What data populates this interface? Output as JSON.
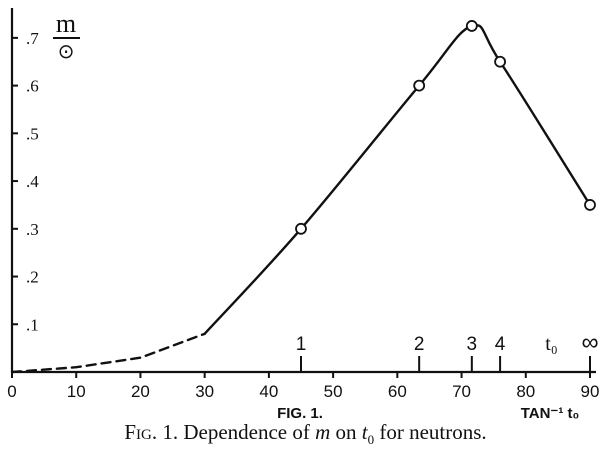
{
  "chart_data": {
    "type": "line",
    "ylabel_top": "m",
    "ylabel_bottom": "⊙",
    "xlim": [
      0,
      90
    ],
    "ylim": [
      0,
      0.75
    ],
    "x_ticks": [
      "0",
      "10",
      "20",
      "30",
      "40",
      "50",
      "60",
      "70",
      "80",
      "90"
    ],
    "y_ticks": [
      ".1",
      ".2",
      ".3",
      ".4",
      ".5",
      ".6",
      ".7"
    ],
    "top_ticks": [
      {
        "x": 45,
        "label": "1"
      },
      {
        "x": 63.4,
        "label": "2"
      },
      {
        "x": 71.6,
        "label": "3"
      },
      {
        "x": 76,
        "label": "4"
      },
      {
        "x": 90,
        "label": "∞"
      }
    ],
    "t0_marker": "t₀",
    "figure_label": "FIG. 1.",
    "axis_label": "TAN⁻¹ t₀",
    "series": [
      {
        "points": [
          {
            "x": 45,
            "y": 0.3
          },
          {
            "x": 63.4,
            "y": 0.6
          },
          {
            "x": 71.6,
            "y": 0.725
          },
          {
            "x": 76,
            "y": 0.65
          },
          {
            "x": 90,
            "y": 0.35
          }
        ],
        "dashed_segment": [
          [
            0,
            0.0
          ],
          [
            10,
            0.01
          ],
          [
            20,
            0.03
          ],
          [
            30,
            0.08
          ]
        ]
      }
    ]
  },
  "caption": {
    "prefix": "Fig. 1.",
    "text": " Dependence of ",
    "m": "m",
    "on": " on ",
    "t0": "t",
    "t0_sub": "0",
    "suffix": " for neutrons."
  }
}
